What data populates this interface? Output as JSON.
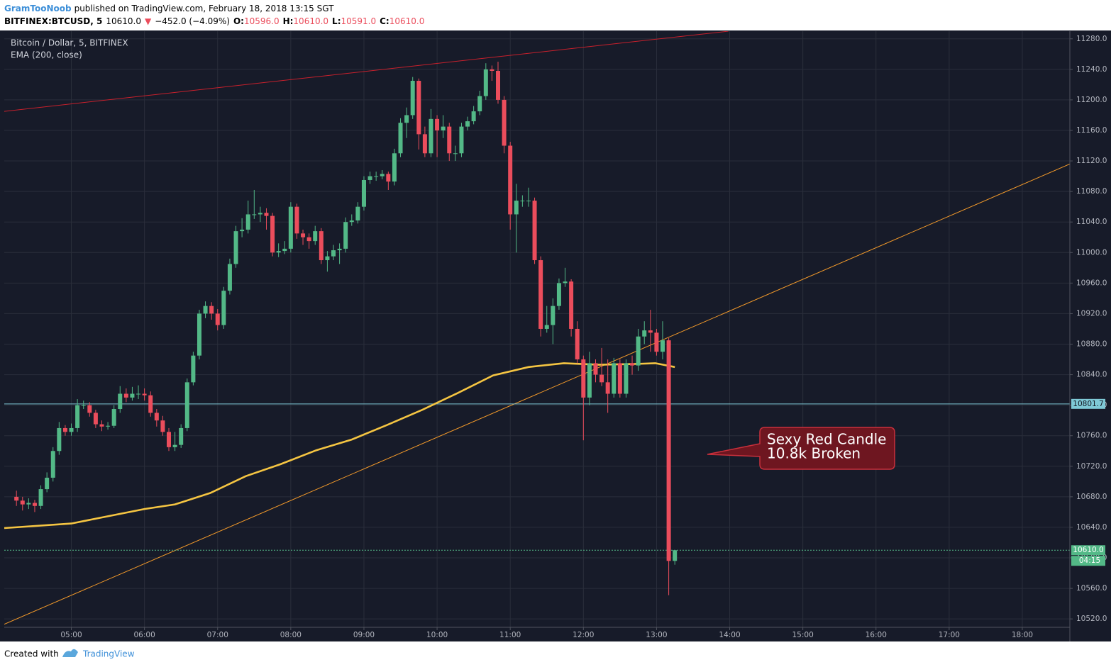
{
  "header": {
    "user": "GramTooNoob",
    "published": "published on TradingView.com, February 18, 2018 13:15 SGT",
    "quote": [
      {
        "text": "BITFINEX:BTCUSD, 5",
        "color": "#000000",
        "bold": true
      },
      {
        "text": "10610.0",
        "color": "#000000",
        "bold": false
      },
      {
        "text": "▼",
        "color": "#eb4d5c",
        "bold": false
      },
      {
        "text": "−452.0 (−4.09%)",
        "color": "#000000",
        "bold": false
      },
      {
        "text": "O:",
        "color": "#000000",
        "bold": true
      },
      {
        "text": "10596.0",
        "color": "#eb4d5c",
        "bold": false
      },
      {
        "text": "H:",
        "color": "#000000",
        "bold": true
      },
      {
        "text": "10610.0",
        "color": "#eb4d5c",
        "bold": false
      },
      {
        "text": "L:",
        "color": "#000000",
        "bold": true
      },
      {
        "text": "10591.0",
        "color": "#eb4d5c",
        "bold": false
      },
      {
        "text": "C:",
        "color": "#000000",
        "bold": true
      },
      {
        "text": "10610.0",
        "color": "#eb4d5c",
        "bold": false
      }
    ]
  },
  "footer": {
    "created": "Created with",
    "brand": "TradingView"
  },
  "chart_data": {
    "type": "candlestick",
    "title": "Bitcoin / Dollar, 5, BITFINEX",
    "xlim": [
      245,
      1119
    ],
    "ylim": [
      10509,
      11290
    ],
    "grid": true,
    "xticks": [
      {
        "value": 300,
        "label": "05:00"
      },
      {
        "value": 360,
        "label": "06:00"
      },
      {
        "value": 420,
        "label": "07:00"
      },
      {
        "value": 480,
        "label": "08:00"
      },
      {
        "value": 540,
        "label": "09:00"
      },
      {
        "value": 600,
        "label": "10:00"
      },
      {
        "value": 660,
        "label": "11:00"
      },
      {
        "value": 720,
        "label": "12:00"
      },
      {
        "value": 780,
        "label": "13:00"
      },
      {
        "value": 840,
        "label": "14:00"
      },
      {
        "value": 900,
        "label": "15:00"
      },
      {
        "value": 960,
        "label": "16:00"
      },
      {
        "value": 1020,
        "label": "17:00"
      },
      {
        "value": 1080,
        "label": "18:00"
      }
    ],
    "yticks": [
      {
        "value": 10520,
        "label": "10520.0"
      },
      {
        "value": 10560,
        "label": "10560.0"
      },
      {
        "value": 10600,
        "label": "10600.0"
      },
      {
        "value": 10640,
        "label": "10640.0"
      },
      {
        "value": 10680,
        "label": "10680.0"
      },
      {
        "value": 10720,
        "label": "10720.0"
      },
      {
        "value": 10760,
        "label": "10760.0"
      },
      {
        "value": 10800,
        "label": "10800.0"
      },
      {
        "value": 10840,
        "label": "10840.0"
      },
      {
        "value": 10880,
        "label": "10880.0"
      },
      {
        "value": 10920,
        "label": "10920.0"
      },
      {
        "value": 10960,
        "label": "10960.0"
      },
      {
        "value": 11000,
        "label": "11000.0"
      },
      {
        "value": 11040,
        "label": "11040.0"
      },
      {
        "value": 11080,
        "label": "11080.0"
      },
      {
        "value": 11120,
        "label": "11120.0"
      },
      {
        "value": 11160,
        "label": "11160.0"
      },
      {
        "value": 11200,
        "label": "11200.0"
      },
      {
        "value": 11240,
        "label": "11240.0"
      },
      {
        "value": 11280,
        "label": "11280.0"
      }
    ],
    "up_color": "#53b987",
    "down_color": "#eb4d5c",
    "x": [
      255,
      260,
      265,
      270,
      275,
      280,
      285,
      290,
      295,
      300,
      305,
      310,
      315,
      320,
      325,
      330,
      335,
      340,
      345,
      350,
      355,
      360,
      365,
      370,
      375,
      380,
      385,
      390,
      395,
      400,
      405,
      410,
      415,
      420,
      425,
      430,
      435,
      440,
      445,
      450,
      455,
      460,
      465,
      470,
      475,
      480,
      485,
      490,
      495,
      500,
      505,
      510,
      515,
      520,
      525,
      530,
      535,
      540,
      545,
      550,
      555,
      560,
      565,
      570,
      575,
      580,
      585,
      590,
      595,
      600,
      605,
      610,
      615,
      620,
      625,
      630,
      635,
      640,
      645,
      650,
      655,
      660,
      665,
      670,
      675,
      680,
      685,
      690,
      695,
      700,
      705,
      710,
      715,
      720,
      725,
      730,
      735,
      740,
      745,
      750,
      755,
      760,
      765,
      770,
      775,
      780,
      785,
      790,
      795
    ],
    "open": [
      10680,
      10675,
      10670,
      10672,
      10668,
      10690,
      10705,
      10740,
      10770,
      10765,
      10770,
      10800,
      10800,
      10790,
      10775,
      10772,
      10773,
      10795,
      10815,
      10810,
      10815,
      10815,
      10813,
      10790,
      10780,
      10765,
      10745,
      10748,
      10770,
      10830,
      10865,
      10920,
      10930,
      10920,
      10905,
      10950,
      10985,
      11028,
      11030,
      11050,
      11050,
      11052,
      11048,
      11000,
      11002,
      11005,
      11060,
      11025,
      11020,
      11015,
      11028,
      10990,
      10995,
      11003,
      11005,
      11040,
      11042,
      11060,
      11095,
      11100,
      11100,
      11103,
      11093,
      11130,
      11170,
      11180,
      11225,
      11155,
      11130,
      11175,
      11160,
      11165,
      11130,
      11130,
      11165,
      11172,
      11185,
      11205,
      11240,
      11238,
      11200,
      11140,
      11050,
      11068,
      11068,
      11068,
      10990,
      10900,
      10905,
      10930,
      10960,
      10962,
      10900,
      10860,
      10810,
      10855,
      10840,
      10830,
      10815,
      10855,
      10815,
      10855,
      10852,
      10890,
      10898,
      10895,
      10870,
      10885,
      10596
    ],
    "high": [
      10688,
      10680,
      10678,
      10676,
      10695,
      10712,
      10745,
      10778,
      10774,
      10776,
      10808,
      10806,
      10804,
      10794,
      10780,
      10778,
      10800,
      10825,
      10822,
      10824,
      10826,
      10822,
      10818,
      10795,
      10786,
      10770,
      10765,
      10775,
      10835,
      10870,
      10925,
      10936,
      10935,
      10926,
      10955,
      10992,
      11035,
      11045,
      11068,
      11082,
      11060,
      11058,
      11052,
      11012,
      11015,
      11066,
      11064,
      11030,
      11025,
      11035,
      11032,
      11002,
      11010,
      11012,
      11046,
      11050,
      11066,
      11100,
      11106,
      11106,
      11108,
      11106,
      11136,
      11176,
      11190,
      11230,
      11228,
      11165,
      11188,
      11180,
      11180,
      11170,
      11140,
      11170,
      11178,
      11192,
      11212,
      11248,
      11245,
      11250,
      11205,
      11145,
      11090,
      11075,
      11085,
      11072,
      10995,
      10930,
      10940,
      10966,
      10980,
      10965,
      10910,
      10865,
      10870,
      10860,
      10875,
      10860,
      10862,
      10860,
      10860,
      10865,
      10900,
      10910,
      10925,
      10900,
      10910,
      10888,
      10610
    ],
    "low": [
      10668,
      10662,
      10664,
      10660,
      10664,
      10686,
      10700,
      10735,
      10760,
      10760,
      10765,
      10795,
      10785,
      10770,
      10766,
      10768,
      10770,
      10790,
      10804,
      10806,
      10808,
      10806,
      10785,
      10772,
      10760,
      10740,
      10740,
      10744,
      10766,
      10826,
      10860,
      10914,
      10912,
      10898,
      10900,
      10945,
      10980,
      11020,
      11025,
      11044,
      11040,
      11030,
      10995,
      10994,
      10998,
      11000,
      11018,
      11010,
      11005,
      11010,
      10985,
      10975,
      10990,
      10985,
      11000,
      11035,
      11038,
      11055,
      11090,
      11094,
      11096,
      11082,
      11088,
      11125,
      11150,
      11175,
      11135,
      11125,
      11125,
      11125,
      11150,
      11120,
      11120,
      11125,
      11160,
      11168,
      11180,
      11200,
      11225,
      11195,
      11130,
      11030,
      11000,
      11060,
      11060,
      10985,
      10890,
      10895,
      10880,
      10925,
      10955,
      10890,
      10855,
      10754,
      10800,
      10830,
      10825,
      10790,
      10810,
      10810,
      10810,
      10840,
      10845,
      10880,
      10870,
      10865,
      10860,
      10551,
      10591
    ],
    "close": [
      10675,
      10670,
      10672,
      10668,
      10690,
      10705,
      10740,
      10770,
      10765,
      10770,
      10800,
      10800,
      10790,
      10775,
      10772,
      10773,
      10795,
      10815,
      10810,
      10815,
      10815,
      10813,
      10790,
      10780,
      10765,
      10745,
      10748,
      10770,
      10830,
      10865,
      10920,
      10930,
      10920,
      10905,
      10950,
      10985,
      11028,
      11030,
      11050,
      11050,
      11052,
      11048,
      11000,
      11002,
      11005,
      11060,
      11025,
      11020,
      11015,
      11028,
      10990,
      10995,
      11003,
      11005,
      11040,
      11042,
      11060,
      11095,
      11100,
      11100,
      11103,
      11093,
      11130,
      11170,
      11180,
      11225,
      11155,
      11130,
      11175,
      11160,
      11165,
      11130,
      11130,
      11165,
      11172,
      11185,
      11205,
      11240,
      11238,
      11200,
      11140,
      11050,
      11068,
      11068,
      11068,
      10990,
      10900,
      10905,
      10930,
      10960,
      10962,
      10900,
      10860,
      10810,
      10855,
      10840,
      10830,
      10815,
      10855,
      10815,
      10855,
      10852,
      10890,
      10898,
      10895,
      10870,
      10885,
      10596,
      10610
    ],
    "ema": {
      "name": "EMA (200, close)",
      "color": "#f5c542",
      "x": [
        245,
        300,
        360,
        385,
        414,
        443,
        472,
        501,
        530,
        559,
        588,
        617,
        646,
        675,
        704,
        733,
        762,
        779,
        795
      ],
      "values": [
        10639,
        10645,
        10664,
        10670,
        10685,
        10707,
        10723,
        10741,
        10755,
        10774,
        10794,
        10816,
        10839,
        10850,
        10855,
        10853,
        10854,
        10855,
        10850
      ]
    },
    "trend_lines": [
      {
        "color": "#c8202c",
        "x": [
          245,
          839
        ],
        "y": [
          11185,
          11290
        ]
      },
      {
        "color": "#f39a2a",
        "x": [
          245,
          1119
        ],
        "y": [
          10513,
          11116
        ]
      }
    ],
    "hlines": [
      {
        "value": 10801.7,
        "label": "10801.7",
        "color": "#7fc9d6",
        "dashed": false
      },
      {
        "value": 10610,
        "label": "10610.0",
        "color": "#53b987",
        "dashed": true,
        "countdown": "04:15"
      }
    ],
    "annotation": {
      "lines": [
        "Sexy Red Candle",
        "10.8k Broken"
      ]
    }
  }
}
